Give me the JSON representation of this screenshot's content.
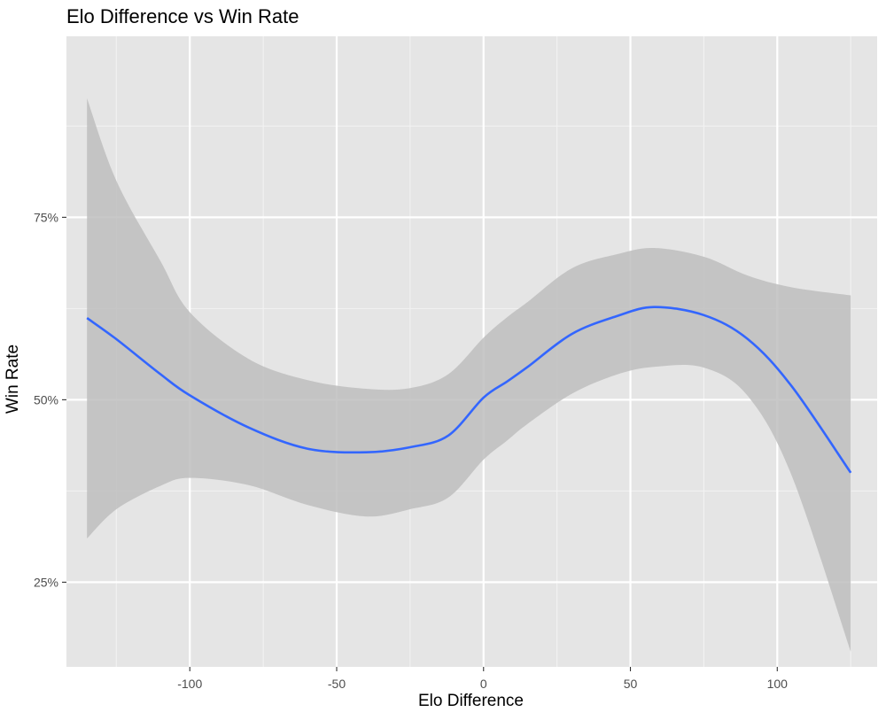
{
  "chart_data": {
    "type": "line",
    "title": "Elo Difference vs Win Rate",
    "xlabel": "Elo Difference",
    "ylabel": "Win Rate",
    "xlim": [
      -142,
      134
    ],
    "ylim": [
      0.134,
      0.998
    ],
    "x_ticks": [
      -100,
      -50,
      0,
      50,
      100
    ],
    "x_tick_labels": [
      "-100",
      "-50",
      "0",
      "50",
      "100"
    ],
    "y_ticks": [
      0.25,
      0.5,
      0.75
    ],
    "y_tick_labels": [
      "25%",
      "50%",
      "75%"
    ],
    "grid": true,
    "series": [
      {
        "color": "#3366FF",
        "x": [
          -135,
          -125,
          -110,
          -100,
          -80,
          -60,
          -40,
          -25,
          -12,
          0,
          8,
          15,
          30,
          45,
          58,
          75,
          90,
          105,
          125
        ],
        "values": [
          0.612,
          0.583,
          0.535,
          0.506,
          0.462,
          0.433,
          0.428,
          0.435,
          0.451,
          0.503,
          0.525,
          0.545,
          0.59,
          0.614,
          0.627,
          0.616,
          0.583,
          0.518,
          0.4
        ]
      }
    ],
    "confidence_band": {
      "color": "#BEBEBE",
      "x": [
        -135,
        -125,
        -110,
        -100,
        -80,
        -60,
        -40,
        -25,
        -12,
        0,
        8,
        15,
        30,
        45,
        58,
        75,
        90,
        105,
        125
      ],
      "upper": [
        0.913,
        0.8,
        0.69,
        0.62,
        0.556,
        0.527,
        0.515,
        0.516,
        0.535,
        0.585,
        0.613,
        0.634,
        0.68,
        0.699,
        0.708,
        0.696,
        0.67,
        0.654,
        0.643
      ],
      "lower": [
        0.31,
        0.35,
        0.382,
        0.393,
        0.383,
        0.356,
        0.34,
        0.35,
        0.366,
        0.418,
        0.444,
        0.467,
        0.508,
        0.534,
        0.545,
        0.544,
        0.505,
        0.395,
        0.155
      ]
    }
  }
}
